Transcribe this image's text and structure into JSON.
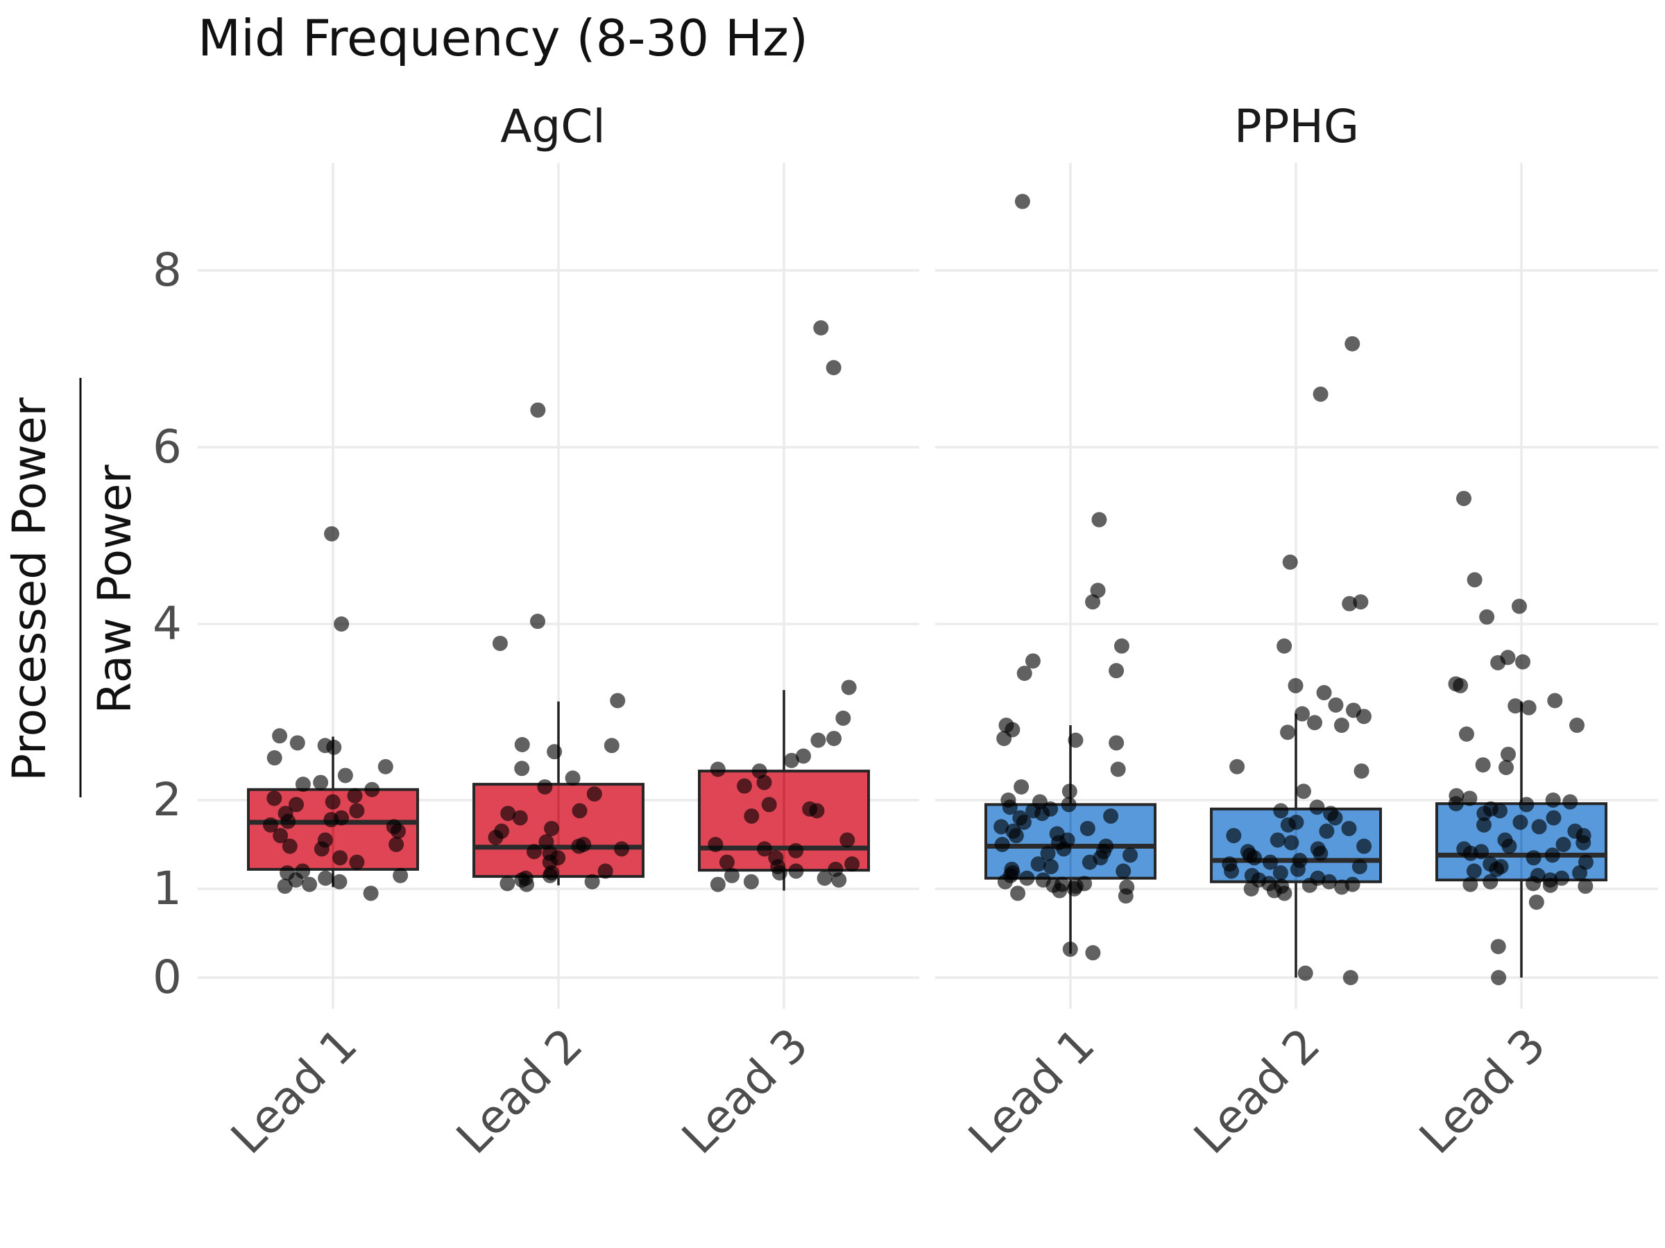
{
  "chart_data": {
    "type": "boxplot",
    "title": "Mid Frequency (8-30 Hz)",
    "ylabel_numerator": "Processed Power",
    "ylabel_denominator": "Raw Power",
    "xlabel": "",
    "ylim": [
      -0.4,
      9.2
    ],
    "y_ticks": [
      0,
      1,
      2,
      4,
      6,
      8
    ],
    "y_tick_labels": [
      "0",
      "1",
      "2",
      "4",
      "6",
      "8"
    ],
    "grid": true,
    "legend": "none",
    "categories": [
      "Lead 1",
      "Lead 2",
      "Lead 3"
    ],
    "panels": [
      {
        "name": "AgCl",
        "color": "#dc3545",
        "boxes": [
          {
            "category": "Lead 1",
            "q1": 1.22,
            "median": 1.75,
            "q3": 2.12,
            "whisker_low": 1.02,
            "whisker_high": 2.72,
            "points": [
              5.02,
              4.0,
              2.73,
              2.65,
              2.62,
              2.6,
              2.48,
              2.38,
              2.28,
              2.2,
              2.18,
              2.12,
              2.05,
              2.02,
              1.98,
              1.95,
              1.88,
              1.85,
              1.8,
              1.78,
              1.76,
              1.72,
              1.7,
              1.65,
              1.6,
              1.55,
              1.5,
              1.48,
              1.45,
              1.35,
              1.3,
              1.2,
              1.18,
              1.15,
              1.12,
              1.1,
              1.08,
              1.05,
              1.03,
              0.95
            ]
          },
          {
            "category": "Lead 2",
            "q1": 1.14,
            "median": 1.47,
            "q3": 2.18,
            "whisker_low": 1.04,
            "whisker_high": 3.12,
            "points": [
              6.42,
              4.03,
              3.78,
              3.13,
              2.63,
              2.62,
              2.55,
              2.36,
              2.25,
              2.15,
              2.07,
              1.88,
              1.85,
              1.8,
              1.68,
              1.65,
              1.58,
              1.53,
              1.5,
              1.48,
              1.45,
              1.42,
              1.4,
              1.35,
              1.3,
              1.2,
              1.18,
              1.15,
              1.12,
              1.1,
              1.08,
              1.06,
              1.05
            ]
          },
          {
            "category": "Lead 3",
            "q1": 1.21,
            "median": 1.46,
            "q3": 2.33,
            "whisker_low": 0.98,
            "whisker_high": 3.25,
            "points": [
              7.35,
              6.9,
              3.28,
              2.93,
              2.7,
              2.68,
              2.5,
              2.45,
              2.35,
              2.33,
              2.2,
              2.16,
              1.95,
              1.9,
              1.88,
              1.82,
              1.55,
              1.5,
              1.45,
              1.43,
              1.35,
              1.3,
              1.28,
              1.25,
              1.22,
              1.2,
              1.18,
              1.15,
              1.12,
              1.1,
              1.08,
              1.05
            ]
          }
        ]
      },
      {
        "name": "PPHG",
        "color": "#4a90d9",
        "boxes": [
          {
            "category": "Lead 1",
            "q1": 1.12,
            "median": 1.48,
            "q3": 1.95,
            "whisker_low": 0.27,
            "whisker_high": 2.85,
            "points": [
              8.78,
              5.18,
              4.38,
              4.25,
              3.75,
              3.58,
              3.47,
              3.44,
              2.85,
              2.8,
              2.7,
              2.68,
              2.65,
              2.35,
              2.15,
              2.1,
              2.0,
              1.98,
              1.95,
              1.92,
              1.9,
              1.88,
              1.85,
              1.82,
              1.8,
              1.75,
              1.7,
              1.68,
              1.65,
              1.62,
              1.6,
              1.55,
              1.52,
              1.5,
              1.48,
              1.45,
              1.42,
              1.4,
              1.38,
              1.35,
              1.3,
              1.28,
              1.25,
              1.22,
              1.2,
              1.18,
              1.15,
              1.12,
              1.1,
              1.08,
              1.06,
              1.05,
              1.04,
              1.03,
              1.02,
              1.0,
              0.98,
              0.95,
              0.92,
              0.28,
              0.32
            ]
          },
          {
            "category": "Lead 2",
            "q1": 1.08,
            "median": 1.32,
            "q3": 1.9,
            "whisker_low": 0.0,
            "whisker_high": 2.98,
            "points": [
              7.17,
              6.6,
              4.7,
              4.25,
              4.23,
              3.75,
              3.3,
              3.22,
              3.08,
              3.02,
              2.98,
              2.95,
              2.88,
              2.85,
              2.77,
              2.38,
              2.33,
              2.1,
              1.92,
              1.88,
              1.85,
              1.8,
              1.75,
              1.72,
              1.68,
              1.65,
              1.6,
              1.55,
              1.52,
              1.48,
              1.45,
              1.42,
              1.4,
              1.38,
              1.35,
              1.32,
              1.3,
              1.28,
              1.25,
              1.22,
              1.2,
              1.18,
              1.15,
              1.12,
              1.1,
              1.08,
              1.06,
              1.05,
              1.04,
              1.03,
              1.02,
              1.0,
              0.98,
              0.95,
              0.0,
              0.05
            ]
          },
          {
            "category": "Lead 3",
            "q1": 1.1,
            "median": 1.38,
            "q3": 1.96,
            "whisker_low": 0.0,
            "whisker_high": 3.12,
            "points": [
              5.42,
              4.5,
              4.2,
              4.08,
              3.62,
              3.57,
              3.56,
              3.32,
              3.3,
              3.13,
              3.07,
              3.05,
              2.85,
              2.75,
              2.52,
              2.4,
              2.37,
              2.05,
              2.02,
              2.0,
              1.98,
              1.96,
              1.95,
              1.9,
              1.88,
              1.85,
              1.8,
              1.75,
              1.72,
              1.7,
              1.65,
              1.6,
              1.55,
              1.52,
              1.5,
              1.48,
              1.45,
              1.42,
              1.4,
              1.38,
              1.35,
              1.3,
              1.28,
              1.25,
              1.22,
              1.2,
              1.18,
              1.15,
              1.12,
              1.1,
              1.08,
              1.06,
              1.05,
              1.04,
              1.03,
              0.85,
              0.35,
              0.0
            ]
          }
        ]
      }
    ]
  }
}
